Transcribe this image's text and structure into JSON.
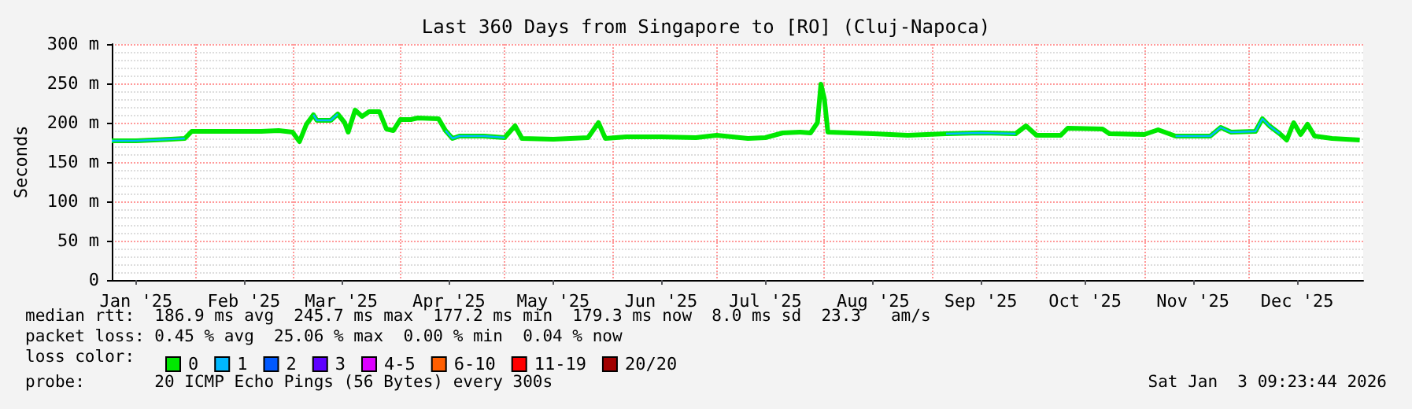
{
  "chart_data": {
    "type": "line",
    "title": "Last 360 Days from Singapore to [RO] (Cluj-Napoca)",
    "ylabel": "Seconds",
    "xlim": [
      "2025-01-08",
      "2026-01-03"
    ],
    "xticks": [
      {
        "value": "2025-01-15",
        "label": "Jan '25"
      },
      {
        "value": "2025-02-01",
        "label": null
      },
      {
        "value": "2025-02-15",
        "label": "Feb '25"
      },
      {
        "value": "2025-03-01",
        "label": null
      },
      {
        "value": "2025-03-15",
        "label": "Mar '25"
      },
      {
        "value": "2025-04-01",
        "label": null
      },
      {
        "value": "2025-04-15",
        "label": "Apr '25"
      },
      {
        "value": "2025-05-01",
        "label": null
      },
      {
        "value": "2025-05-15",
        "label": "May '25"
      },
      {
        "value": "2025-06-01",
        "label": null
      },
      {
        "value": "2025-06-15",
        "label": "Jun '25"
      },
      {
        "value": "2025-07-01",
        "label": null
      },
      {
        "value": "2025-07-15",
        "label": "Jul '25"
      },
      {
        "value": "2025-08-01",
        "label": null
      },
      {
        "value": "2025-08-15",
        "label": "Aug '25"
      },
      {
        "value": "2025-09-01",
        "label": null
      },
      {
        "value": "2025-09-15",
        "label": "Sep '25"
      },
      {
        "value": "2025-10-01",
        "label": null
      },
      {
        "value": "2025-10-15",
        "label": "Oct '25"
      },
      {
        "value": "2025-11-01",
        "label": null
      },
      {
        "value": "2025-11-15",
        "label": "Nov '25"
      },
      {
        "value": "2025-12-01",
        "label": null
      },
      {
        "value": "2025-12-15",
        "label": "Dec '25"
      }
    ],
    "ylim": [
      0,
      300
    ],
    "yticks": [
      0,
      {
        "value": 50,
        "label": "50 m"
      },
      {
        "value": 100,
        "label": "100 m"
      },
      {
        "value": 150,
        "label": "150 m"
      },
      {
        "value": 200,
        "label": "200 m"
      },
      {
        "value": 250,
        "label": "250 m"
      },
      {
        "value": 300,
        "label": "300 m"
      }
    ],
    "grid": true,
    "legend": "bottom",
    "legend_title": "loss color:",
    "series": [
      {
        "name": "0",
        "color": "#00e800",
        "x": [
          "2025-01-08",
          "2025-01-15",
          "2025-01-20",
          "2025-01-25",
          "2025-01-29",
          "2025-01-31",
          "2025-02-10",
          "2025-02-20",
          "2025-02-25",
          "2025-03-01",
          "2025-03-03",
          "2025-03-05",
          "2025-03-07",
          "2025-03-08",
          "2025-03-12",
          "2025-03-14",
          "2025-03-16",
          "2025-03-17",
          "2025-03-19",
          "2025-03-21",
          "2025-03-23",
          "2025-03-26",
          "2025-03-28",
          "2025-03-30",
          "2025-04-01",
          "2025-04-04",
          "2025-04-06",
          "2025-04-12",
          "2025-04-14",
          "2025-04-16",
          "2025-04-18",
          "2025-04-25",
          "2025-05-01",
          "2025-05-04",
          "2025-05-06",
          "2025-05-15",
          "2025-05-25",
          "2025-05-28",
          "2025-05-30",
          "2025-06-05",
          "2025-06-15",
          "2025-06-25",
          "2025-07-01",
          "2025-07-10",
          "2025-07-15",
          "2025-07-20",
          "2025-07-25",
          "2025-07-28",
          "2025-07-30",
          "2025-07-31",
          "2025-08-01",
          "2025-08-02",
          "2025-08-15",
          "2025-08-25",
          "2025-09-05",
          "2025-09-15",
          "2025-09-25",
          "2025-09-28",
          "2025-10-01",
          "2025-10-08",
          "2025-10-10",
          "2025-10-20",
          "2025-10-22",
          "2025-11-01",
          "2025-11-05",
          "2025-11-10",
          "2025-11-20",
          "2025-11-23",
          "2025-11-26",
          "2025-12-03",
          "2025-12-05",
          "2025-12-07",
          "2025-12-10",
          "2025-12-12",
          "2025-12-14",
          "2025-12-16",
          "2025-12-18",
          "2025-12-20",
          "2025-12-25",
          "2026-01-02"
        ],
        "values": [
          177,
          177,
          178,
          179,
          180,
          189,
          189,
          189,
          190,
          188,
          176,
          198,
          210,
          203,
          203,
          211,
          200,
          188,
          216,
          208,
          214,
          214,
          192,
          190,
          204,
          204,
          206,
          205,
          190,
          180,
          183,
          183,
          181,
          196,
          180,
          179,
          181,
          200,
          180,
          182,
          182,
          181,
          184,
          180,
          181,
          187,
          188,
          187,
          200,
          249,
          230,
          188,
          186,
          184,
          186,
          187,
          186,
          196,
          184,
          184,
          193,
          192,
          186,
          185,
          191,
          183,
          183,
          194,
          188,
          189,
          205,
          196,
          186,
          178,
          200,
          185,
          198,
          183,
          180,
          178
        ]
      },
      {
        "name": "1",
        "color": "#00b8ff",
        "x": [
          "2025-01-08",
          "2025-01-15",
          "2025-01-20",
          "2025-01-25",
          "2025-01-29",
          "2025-02-15",
          "2025-03-07",
          "2025-03-08",
          "2025-03-12",
          "2025-03-14",
          "2025-03-30",
          "2025-04-14",
          "2025-04-16",
          "2025-04-18",
          "2025-04-25",
          "2025-05-01",
          "2025-08-15",
          "2025-09-05",
          "2025-09-15",
          "2025-09-25",
          "2025-10-15",
          "2025-11-10",
          "2025-11-20",
          "2025-11-23",
          "2025-11-26",
          "2025-12-03",
          "2025-12-05",
          "2025-12-07",
          "2025-12-10"
        ],
        "values": [
          177,
          177,
          178,
          179,
          180,
          null,
          210,
          203,
          203,
          211,
          null,
          190,
          180,
          183,
          183,
          181,
          null,
          186,
          187,
          186,
          null,
          183,
          183,
          194,
          188,
          189,
          205,
          196,
          186
        ]
      },
      {
        "name": "2",
        "color": "#0059ff"
      },
      {
        "name": "3",
        "color": "#5e00ff"
      },
      {
        "name": "4-5",
        "color": "#dd00ff"
      },
      {
        "name": "6-10",
        "color": "#ff5e00"
      },
      {
        "name": "11-19",
        "color": "#ff0000"
      },
      {
        "name": "20/20",
        "color": "#a10000"
      }
    ],
    "annotations": [
      "median rtt:  186.9 ms avg  245.7 ms max  177.2 ms min  179.3 ms now  8.0 ms sd  23.3   am/s",
      "packet loss: 0.45 % avg  25.06 % max  0.00 % min  0.04 % now",
      "probe:       20 ICMP Echo Pings (56 Bytes) every 300s",
      "Sat Jan  3 09:23:44 2026"
    ]
  }
}
